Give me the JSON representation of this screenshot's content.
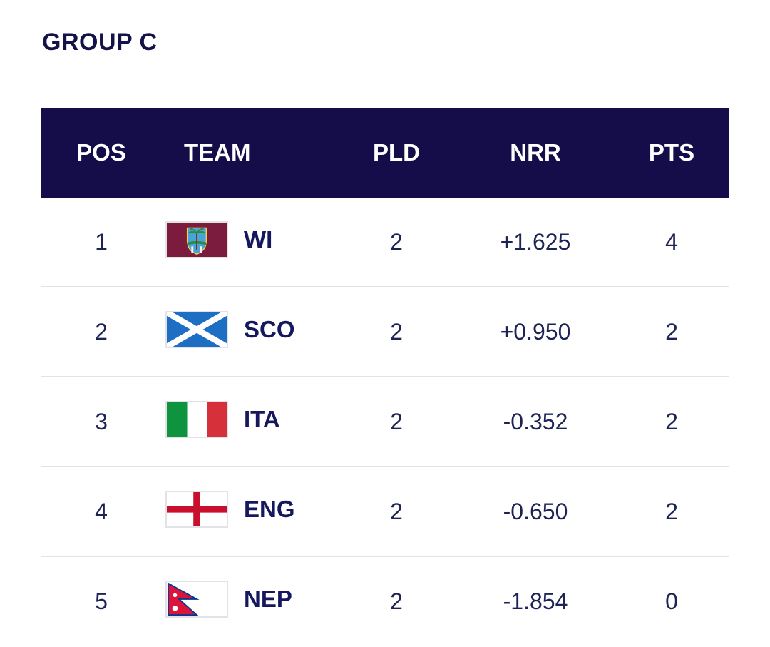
{
  "group": {
    "title": "GROUP C"
  },
  "table": {
    "headers": {
      "pos": "POS",
      "team": "TEAM",
      "pld": "PLD",
      "nrr": "NRR",
      "pts": "PTS"
    },
    "rows": [
      {
        "pos": "1",
        "team": "WI",
        "flag_icon": "west-indies-flag-icon",
        "pld": "2",
        "nrr": "+1.625",
        "pts": "4"
      },
      {
        "pos": "2",
        "team": "SCO",
        "flag_icon": "scotland-flag-icon",
        "pld": "2",
        "nrr": "+0.950",
        "pts": "2"
      },
      {
        "pos": "3",
        "team": "ITA",
        "flag_icon": "italy-flag-icon",
        "pld": "2",
        "nrr": "-0.352",
        "pts": "2"
      },
      {
        "pos": "4",
        "team": "ENG",
        "flag_icon": "england-flag-icon",
        "pld": "2",
        "nrr": "-0.650",
        "pts": "2"
      },
      {
        "pos": "5",
        "team": "NEP",
        "flag_icon": "nepal-flag-icon",
        "pld": "2",
        "nrr": "-1.854",
        "pts": "0"
      }
    ]
  },
  "colors": {
    "header_bg": "#150c4a",
    "title_text": "#15124a",
    "row_text": "#1d2455",
    "divider": "#e3e3e7"
  }
}
